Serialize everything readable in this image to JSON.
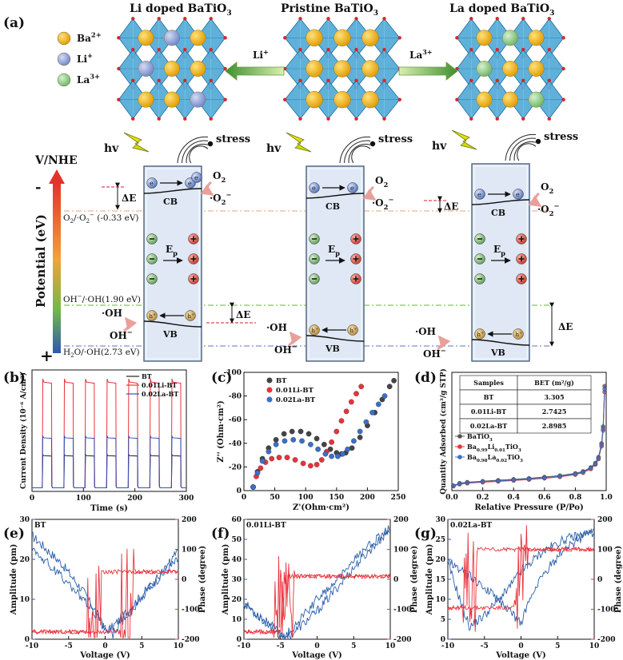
{
  "panel_labels": [
    "(a)",
    "(b)",
    "(c)",
    "(d)",
    "(e)",
    "(f)",
    "(g)"
  ],
  "schematic": {
    "titles": {
      "li": {
        "base": "Li doped BaTiO",
        "sub": "3"
      },
      "pristine": {
        "base": "Pristine BaTiO",
        "sub": "3"
      },
      "la": {
        "base": "La doped BaTiO",
        "sub": "3"
      }
    },
    "ion_legend": [
      {
        "base": "Ba",
        "sup": "2+",
        "color": "#f0b11c"
      },
      {
        "base": "Li",
        "sup": "+",
        "color": "#8fa1d8"
      },
      {
        "base": "La",
        "sup": "3+",
        "color": "#8fc98a"
      }
    ],
    "arrow_li": {
      "base": "Li",
      "sup": "+"
    },
    "arrow_la": {
      "base": "La",
      "sup": "3+"
    },
    "axis_title": "V/NHE",
    "axis_label": "Potential (eV)",
    "axis_minus": "-",
    "axis_plus": "+",
    "hv": "hv",
    "stress": "stress",
    "cb": "CB",
    "vb": "VB",
    "ep": {
      "base": "E",
      "sub": "p"
    },
    "delta_e": "ΔE",
    "o2": {
      "base": "O",
      "sub": "2"
    },
    "superoxide": {
      "base": "·O",
      "sub": "2",
      "sup": "−"
    },
    "oh_radical": "·OH",
    "oh_ion": {
      "base": "OH",
      "sup": "−"
    },
    "electron": "e",
    "hole": "h",
    "hole_sup": "+",
    "potentials": [
      {
        "base": "O",
        "sub": "2",
        "mid": "/·O",
        "sub2": "2",
        "sup": "−",
        "tail": " (-0.33 eV)"
      },
      {
        "base": "OH",
        "sup": "−",
        "tail": "/·OH(1.90 eV)"
      },
      {
        "base": "H",
        "sub": "2",
        "tail": "O/·OH(2.73 eV)"
      }
    ]
  },
  "chart_data": [
    {
      "panel": "(b)",
      "type": "line",
      "xlabel": "Time (s)",
      "ylabel": "Current Density (10⁻⁶ A/cm²)",
      "xlim": [
        0,
        300
      ],
      "xticks": [
        0,
        100,
        200,
        300
      ],
      "on_periods": [
        [
          20,
          38
        ],
        [
          62,
          80
        ],
        [
          103,
          121
        ],
        [
          145,
          163
        ],
        [
          187,
          205
        ],
        [
          229,
          247
        ],
        [
          271,
          289
        ]
      ],
      "series": [
        {
          "name": "BT",
          "color": "#222222",
          "dark": 0.05,
          "light": 0.5
        },
        {
          "name": "0.01Li-BT",
          "color": "#e8323c",
          "dark": 0.05,
          "light": 1.53
        },
        {
          "name": "0.02La-BT",
          "color": "#3550b8",
          "dark": 0.05,
          "light": 0.75
        }
      ],
      "ylim": [
        0,
        1.7
      ]
    },
    {
      "panel": "(c)",
      "type": "scatter",
      "xlabel": "Z'(Ohm·cm²)",
      "ylabel": "Z'' (Ohm·cm²)",
      "xlim": [
        0,
        250
      ],
      "ylim": [
        0,
        -100
      ],
      "xticks": [
        0,
        50,
        100,
        150,
        200,
        250
      ],
      "yticks": [
        0,
        -20,
        -40,
        -60,
        -80,
        -100
      ],
      "series": [
        {
          "name": "BT",
          "color": "#444444",
          "x": [
            15,
            22,
            30,
            40,
            52,
            65,
            78,
            92,
            105,
            118,
            130,
            140,
            150,
            158,
            165,
            175,
            188,
            200,
            212,
            224,
            236,
            243
          ],
          "y": [
            -3,
            -16,
            -27,
            -36,
            -43,
            -48,
            -50,
            -50,
            -48,
            -44,
            -39,
            -35,
            -32,
            -31,
            -32,
            -36,
            -45,
            -55,
            -66,
            -77,
            -88,
            -93
          ]
        },
        {
          "name": "0.01Li-BT",
          "color": "#e8323c",
          "x": [
            15,
            20,
            27,
            35,
            45,
            57,
            70,
            83,
            96,
            108,
            118,
            126,
            134,
            142,
            150,
            158,
            166,
            174,
            182,
            190
          ],
          "y": [
            -3,
            -12,
            -19,
            -24,
            -27,
            -28,
            -28,
            -26,
            -23,
            -21,
            -22,
            -26,
            -33,
            -41,
            -50,
            -59,
            -67,
            -75,
            -82,
            -88
          ]
        },
        {
          "name": "0.02La-BT",
          "color": "#3b6fc9",
          "x": [
            15,
            22,
            30,
            40,
            52,
            66,
            80,
            94,
            108,
            120,
            132,
            142,
            152,
            160,
            168,
            178,
            188,
            198,
            208,
            218,
            228
          ],
          "y": [
            -3,
            -15,
            -25,
            -33,
            -39,
            -42,
            -43,
            -42,
            -39,
            -35,
            -31,
            -29,
            -29,
            -31,
            -35,
            -42,
            -50,
            -58,
            -66,
            -73,
            -80
          ]
        }
      ]
    },
    {
      "panel": "(d)",
      "type": "line",
      "xlabel": "Relative Pressure (P/Po)",
      "ylabel": "Quantity Adsorbed (cm³/g STP)",
      "xlim": [
        0,
        1
      ],
      "ylim": [
        0,
        12
      ],
      "xticks": [
        0.0,
        0.2,
        0.4,
        0.6,
        0.8,
        1.0
      ],
      "yticks": [
        0,
        2,
        4,
        6,
        8,
        10,
        12
      ],
      "table": {
        "headers": [
          "Samples",
          "BET (m²/g)"
        ],
        "rows": [
          [
            "BT",
            "3.305"
          ],
          [
            "0.01Li-BT",
            "2.7425"
          ],
          [
            "0.02La-BT",
            "2.8985"
          ]
        ]
      },
      "series": [
        {
          "name": "BaTiO₃",
          "label": {
            "base": "BaTiO",
            "sub": "3"
          },
          "color": "#555555",
          "x": [
            0.01,
            0.05,
            0.1,
            0.2,
            0.3,
            0.4,
            0.5,
            0.6,
            0.7,
            0.8,
            0.85,
            0.9,
            0.93,
            0.95,
            0.97,
            0.98,
            0.99
          ],
          "y": [
            0.5,
            0.75,
            0.85,
            0.95,
            1.05,
            1.15,
            1.25,
            1.38,
            1.52,
            1.75,
            1.95,
            2.35,
            2.8,
            3.4,
            4.8,
            6.5,
            10.6
          ]
        },
        {
          "name": "Ba0.99Li0.01TiO3",
          "label": {
            "base": "Ba",
            "sub": "0.99",
            "mid": "Li",
            "sub2": "0.01",
            "tail": "TiO",
            "sub3": "3"
          },
          "color": "#e8323c",
          "x": [
            0.01,
            0.05,
            0.1,
            0.2,
            0.3,
            0.4,
            0.5,
            0.6,
            0.7,
            0.8,
            0.85,
            0.9,
            0.93,
            0.95,
            0.97,
            0.98,
            0.99
          ],
          "y": [
            0.45,
            0.65,
            0.75,
            0.85,
            0.93,
            1.02,
            1.12,
            1.25,
            1.4,
            1.62,
            1.82,
            2.2,
            2.65,
            3.2,
            4.5,
            6.1,
            10.0
          ]
        },
        {
          "name": "Ba0.98La0.02TiO3",
          "label": {
            "base": "Ba",
            "sub": "0.98",
            "mid": "La",
            "sub2": "0.02",
            "tail": "TiO",
            "sub3": "3"
          },
          "color": "#3b6fc9",
          "x": [
            0.01,
            0.05,
            0.1,
            0.2,
            0.3,
            0.4,
            0.5,
            0.6,
            0.7,
            0.8,
            0.85,
            0.9,
            0.93,
            0.95,
            0.97,
            0.98,
            0.99
          ],
          "y": [
            0.48,
            0.7,
            0.8,
            0.9,
            0.98,
            1.08,
            1.18,
            1.3,
            1.45,
            1.68,
            1.88,
            2.28,
            2.72,
            3.3,
            4.65,
            6.3,
            10.3
          ]
        }
      ]
    },
    {
      "panel": "(e)",
      "type": "line",
      "title": "BT",
      "xlabel": "Voltage (V)",
      "ylabel_left": "Amplitude (pm)",
      "ylabel_right": "Phase (degree)",
      "xlim": [
        -10,
        10
      ],
      "xticks": [
        -10,
        -5,
        0,
        5,
        10
      ],
      "ylim_left": [
        0,
        30
      ],
      "yticks_left": [
        0,
        10,
        20,
        30
      ],
      "ylim_right": [
        -200,
        200
      ],
      "yticks_right": [
        -200,
        -100,
        0,
        100,
        200
      ],
      "amplitude": {
        "color": "#2b5fa8",
        "up": {
          "x": [
            -10,
            -6,
            -3,
            -1,
            0,
            1,
            3,
            6,
            10
          ],
          "y": [
            26,
            19,
            12,
            6,
            2,
            3,
            7,
            13,
            20
          ]
        },
        "down": {
          "x": [
            10,
            7,
            4,
            2,
            1,
            0,
            -2,
            -5,
            -10
          ],
          "y": [
            22,
            15,
            8,
            4,
            1,
            3,
            8,
            14,
            23
          ]
        }
      },
      "phase": {
        "color": "#e8323c",
        "low": -175,
        "high": 25,
        "switch_up": 3,
        "switch_down": -1.5
      }
    },
    {
      "panel": "(f)",
      "type": "line",
      "title": "0.01Li-BT",
      "xlabel": "Voltage (V)",
      "ylabel_left": "Amplitude (pm)",
      "ylabel_right": "Phase (degree)",
      "xlim": [
        -10,
        10
      ],
      "xticks": [
        -10,
        -5,
        0,
        5,
        10
      ],
      "ylim_left": [
        0,
        60
      ],
      "yticks_left": [
        0,
        10,
        20,
        30,
        40,
        50,
        60
      ],
      "ylim_right": [
        -200,
        200
      ],
      "yticks_right": [
        -200,
        -100,
        0,
        100,
        200
      ],
      "amplitude": {
        "color": "#2b5fa8",
        "up": {
          "x": [
            -10,
            -7,
            -5,
            -4,
            -3,
            0,
            3,
            6,
            10
          ],
          "y": [
            18,
            9,
            3,
            1,
            4,
            14,
            27,
            40,
            55
          ]
        },
        "down": {
          "x": [
            10,
            6,
            3,
            0,
            -2,
            -4,
            -5,
            -7,
            -10
          ],
          "y": [
            56,
            43,
            31,
            20,
            11,
            3,
            1,
            8,
            17
          ]
        }
      },
      "phase": {
        "color": "#e8323c",
        "low": -175,
        "high": 10,
        "switch_up": -5,
        "switch_down": -4
      }
    },
    {
      "panel": "(g)",
      "type": "line",
      "title": "0.02La-BT",
      "xlabel": "Voltage (V)",
      "ylabel_left": "Amplitude (pm)",
      "ylabel_right": "Phase (degree)",
      "xlim": [
        -10,
        10
      ],
      "xticks": [
        -10,
        -5,
        0,
        5,
        10
      ],
      "ylim_left": [
        0,
        30
      ],
      "yticks_left": [
        0,
        5,
        10,
        15,
        20,
        25,
        30
      ],
      "ylim_right": [
        -200,
        200
      ],
      "yticks_right": [
        -200,
        -100,
        0,
        100,
        200
      ],
      "amplitude": {
        "color": "#2b5fa8",
        "up": {
          "x": [
            -10,
            -8,
            -7,
            -5,
            -2,
            0,
            3,
            6,
            10
          ],
          "y": [
            19,
            8,
            3,
            6,
            12,
            17,
            22,
            25,
            27
          ]
        },
        "down": {
          "x": [
            10,
            6,
            3,
            1,
            0,
            -2,
            -5,
            -8,
            -10
          ],
          "y": [
            27,
            23,
            16,
            9,
            4,
            8,
            13,
            17,
            20
          ]
        }
      },
      "phase": {
        "color": "#e8323c",
        "low": -95,
        "high": 100,
        "switch_up": 0,
        "switch_down": -7
      }
    }
  ]
}
